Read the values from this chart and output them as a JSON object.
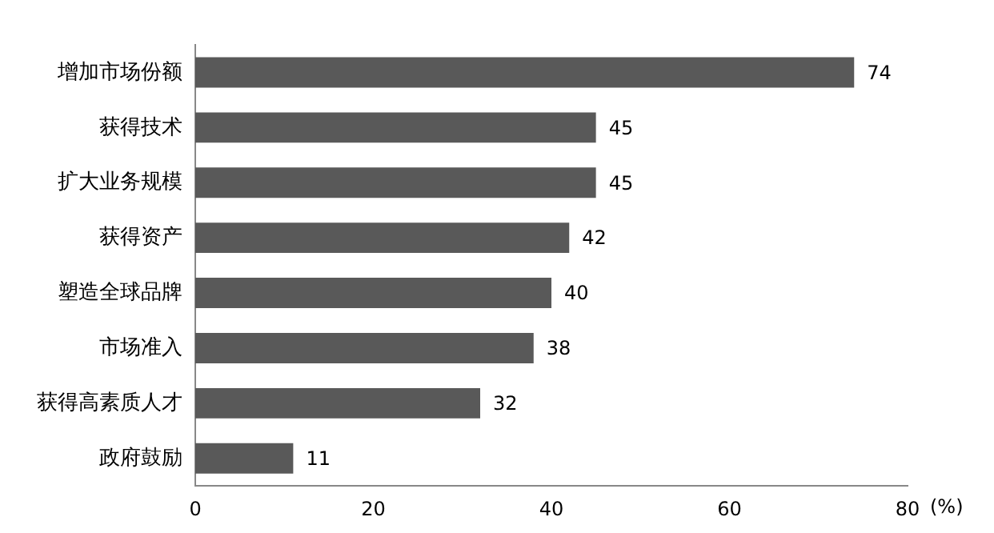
{
  "chart_data": {
    "type": "bar",
    "orientation": "horizontal",
    "categories": [
      "增加市场份额",
      "获得技术",
      "扩大业务规模",
      "获得资产",
      "塑造全球品牌",
      "市场准入",
      "获得高素质人才",
      "政府鼓励"
    ],
    "values": [
      74,
      45,
      45,
      42,
      40,
      38,
      32,
      11
    ],
    "color": "#595959",
    "xlim": [
      0,
      80
    ],
    "xticks": [
      0,
      20,
      40,
      60,
      80
    ],
    "xlabel": "(%)",
    "grid": false,
    "legend": false,
    "data_labels": true
  }
}
